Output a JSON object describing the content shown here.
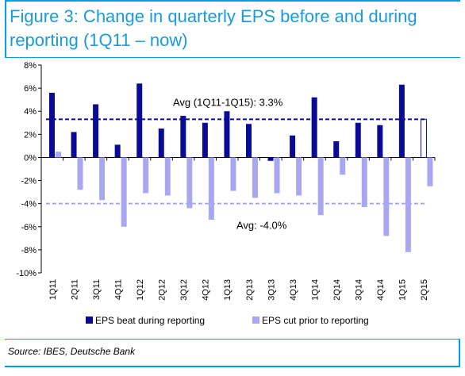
{
  "title": "Figure 3: Change in quarterly EPS before and during reporting (1Q11 – now)",
  "source": "Source: IBES, Deutsche Bank",
  "colors": {
    "beat": "#0a0a96",
    "cut": "#a8a8f2",
    "frame": "#00a1e4",
    "title": "#1a9ad8"
  },
  "chart_data": {
    "type": "bar",
    "categories": [
      "1Q11",
      "2Q11",
      "3Q11",
      "4Q11",
      "1Q12",
      "2Q12",
      "3Q12",
      "4Q12",
      "1Q13",
      "2Q13",
      "3Q13",
      "4Q13",
      "1Q14",
      "2Q14",
      "3Q14",
      "4Q14",
      "1Q15",
      "2Q15"
    ],
    "series": [
      {
        "name": "EPS beat during reporting",
        "values": [
          5.6,
          2.2,
          4.6,
          1.1,
          6.4,
          2.5,
          3.6,
          3.0,
          4.0,
          2.9,
          -0.3,
          1.9,
          5.2,
          1.4,
          3.0,
          2.8,
          6.3,
          3.3
        ],
        "outlined_last": true
      },
      {
        "name": "EPS cut prior to reporting",
        "values": [
          0.5,
          -2.8,
          -3.7,
          -6.0,
          -3.1,
          -3.3,
          -4.4,
          -5.4,
          -2.9,
          -3.5,
          -3.1,
          -3.3,
          -5.0,
          -1.5,
          -4.3,
          -6.8,
          -8.2,
          -2.5
        ]
      }
    ],
    "ylim": [
      -10,
      8
    ],
    "yticks": [
      8,
      6,
      4,
      2,
      0,
      -2,
      -4,
      -6,
      -8,
      -10
    ],
    "tick_suffix": "%",
    "reference_lines": [
      {
        "label": "Avg (1Q11-1Q15): 3.3%",
        "value": 3.3,
        "series": "beat"
      },
      {
        "label": "Avg: -4.0%",
        "value": -4.0,
        "series": "cut"
      }
    ],
    "legend_position": "bottom",
    "grid": false
  }
}
